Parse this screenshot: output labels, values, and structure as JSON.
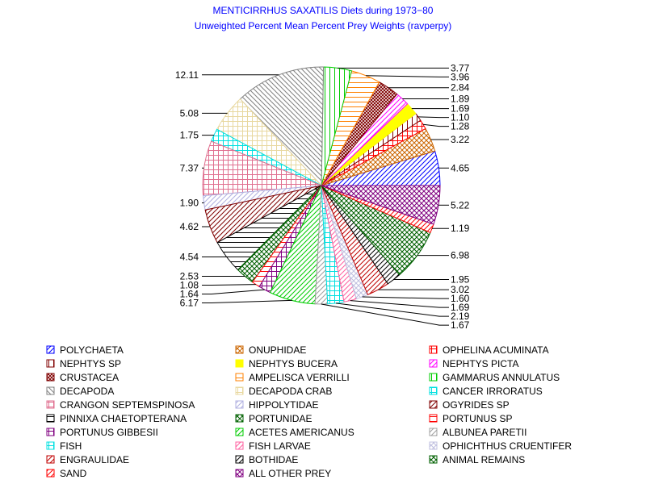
{
  "chart_data": {
    "type": "pie",
    "title": "MENTICIRRHUS SAXATILIS Diets during 1973−80",
    "subtitle": "Unweighted Percent Mean Percent Prey  Weights (ravperpy)",
    "slices": [
      {
        "label": "POLYCHAETA",
        "value": 4.65,
        "value_label": "4.65",
        "color": "#0000ff",
        "pattern": "diag-up"
      },
      {
        "label": "ONUPHIDAE",
        "value": 3.22,
        "value_label": "3.22",
        "color": "#cc6600",
        "pattern": "cross-diag"
      },
      {
        "label": "OPHELINA ACUMINATA",
        "value": 1.28,
        "value_label": "1.28",
        "color": "#ff0000",
        "pattern": "box"
      },
      {
        "label": "NEPHTYS SP",
        "value": 1.1,
        "value_label": "1.10",
        "color": "#800000",
        "pattern": "vert"
      },
      {
        "label": "NEPHTYS BUCERA",
        "value": 1.69,
        "value_label": "1.69",
        "color": "#ffff00",
        "pattern": "solid"
      },
      {
        "label": "NEPHTYS PICTA",
        "value": 1.89,
        "value_label": "1.89",
        "color": "#ff00ff",
        "pattern": "diag-up"
      },
      {
        "label": "CRUSTACEA",
        "value": 2.84,
        "value_label": "2.84",
        "color": "#800000",
        "pattern": "cross-diag-dense"
      },
      {
        "label": "AMPELISCA VERRILLI",
        "value": 3.96,
        "value_label": "3.96",
        "color": "#ff8000",
        "pattern": "horiz"
      },
      {
        "label": "GAMMARUS ANNULATUS",
        "value": 3.77,
        "value_label": "3.77",
        "color": "#00cc00",
        "pattern": "vert"
      },
      {
        "label": "DECAPODA",
        "value": 12.11,
        "value_label": "12.11",
        "color": "#808080",
        "pattern": "diag-down"
      },
      {
        "label": "DECAPODA CRAB",
        "value": 5.08,
        "value_label": "5.08",
        "color": "#e8d8a0",
        "pattern": "grid"
      },
      {
        "label": "CANCER IRRORATUS",
        "value": 1.75,
        "value_label": "1.75",
        "color": "#00e0e0",
        "pattern": "grid"
      },
      {
        "label": "CRANGON SEPTEMSPINOSA",
        "value": 7.37,
        "value_label": "7.37",
        "color": "#e07090",
        "pattern": "grid"
      },
      {
        "label": "HIPPOLYTIDAE",
        "value": 1.9,
        "value_label": "1.90",
        "color": "#b0b0e0",
        "pattern": "diag-up"
      },
      {
        "label": "OGYRIDES SP",
        "value": 4.62,
        "value_label": "4.62",
        "color": "#800000",
        "pattern": "diag-up"
      },
      {
        "label": "PINNIXA CHAETOPTERANA",
        "value": 4.54,
        "value_label": "4.54",
        "color": "#000000",
        "pattern": "horiz"
      },
      {
        "label": "PORTUNIDAE",
        "value": 2.53,
        "value_label": "2.53",
        "color": "#006000",
        "pattern": "cross-diag"
      },
      {
        "label": "PORTUNUS SP",
        "value": 1.08,
        "value_label": "1.08",
        "color": "#ff0000",
        "pattern": "horiz"
      },
      {
        "label": "PORTUNUS GIBBESII",
        "value": 1.64,
        "value_label": "1.64",
        "color": "#800080",
        "pattern": "grid"
      },
      {
        "label": "ACETES AMERICANUS",
        "value": 6.17,
        "value_label": "6.17",
        "color": "#00cc00",
        "pattern": "diag-up"
      },
      {
        "label": "ALBUNEA PARETII",
        "value": 1.67,
        "value_label": "1.67",
        "color": "#a0a0a0",
        "pattern": "diag-up"
      },
      {
        "label": "FISH",
        "value": 2.19,
        "value_label": "2.19",
        "color": "#00e0e0",
        "pattern": "grid"
      },
      {
        "label": "FISH LARVAE",
        "value": 1.69,
        "value_label": "1.69",
        "color": "#ff60a0",
        "pattern": "diag-up"
      },
      {
        "label": "OPHICHTHUS CRUENTIFER",
        "value": 1.6,
        "value_label": "1.60",
        "color": "#c0c0e0",
        "pattern": "cross-diag"
      },
      {
        "label": "ENGRAULIDAE",
        "value": 3.02,
        "value_label": "3.02",
        "color": "#c00000",
        "pattern": "diag-up"
      },
      {
        "label": "BOTHIDAE",
        "value": 1.95,
        "value_label": "1.95",
        "color": "#000000",
        "pattern": "diag-up"
      },
      {
        "label": "ANIMAL REMAINS",
        "value": 6.98,
        "value_label": "6.98",
        "color": "#006000",
        "pattern": "cross-diag"
      },
      {
        "label": "SAND",
        "value": 1.19,
        "value_label": "1.19",
        "color": "#ff0000",
        "pattern": "diag-up"
      },
      {
        "label": "ALL OTHER PREY",
        "value": 5.22,
        "value_label": "5.22",
        "color": "#800080",
        "pattern": "cross-diag"
      }
    ],
    "legend_position": "bottom",
    "legend_columns": 3
  }
}
